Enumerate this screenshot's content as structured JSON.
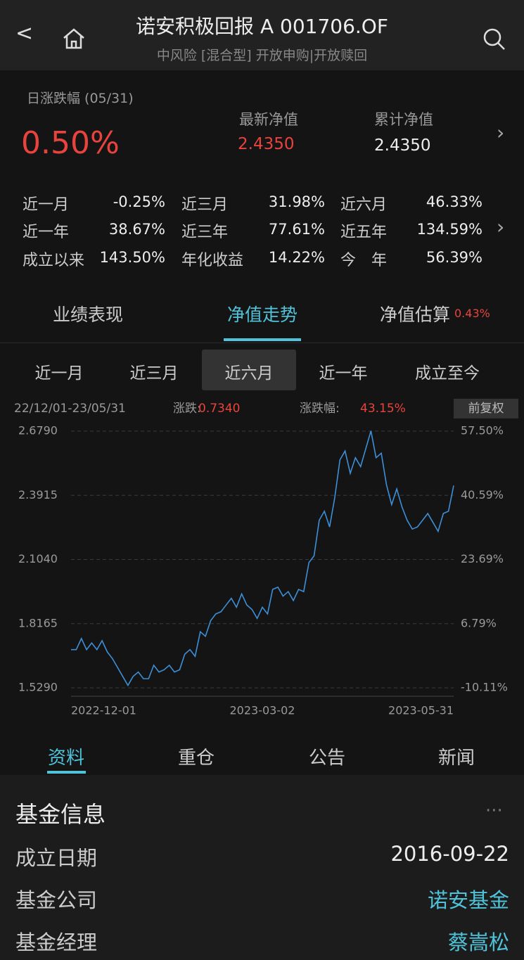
{
  "header": {
    "title": "诺安积极回报 A 001706.OF",
    "subtitle": "中风险 [混合型] 开放申购|开放赎回"
  },
  "summary": {
    "change_label": "日涨跌幅 (05/31)",
    "change": "0.50%",
    "nav_label": "最新净值",
    "nav": "2.4350",
    "acc_label": "累计净值",
    "acc": "2.4350"
  },
  "returns": [
    [
      [
        "近一月",
        "-0.25%"
      ],
      [
        "近三月",
        "31.98%"
      ],
      [
        "近六月",
        "46.33%"
      ]
    ],
    [
      [
        "近一年",
        "38.67%"
      ],
      [
        "近三年",
        "77.61%"
      ],
      [
        "近五年",
        "134.59%"
      ]
    ],
    [
      [
        "成立以来",
        "143.50%"
      ],
      [
        "年化收益",
        "14.22%"
      ],
      [
        "今　年",
        "56.39%"
      ]
    ]
  ],
  "tabs": [
    "业绩表现",
    "净值走势",
    "净值估算"
  ],
  "estimate": "0.43%",
  "ranges": [
    "近一月",
    "近三月",
    "近六月",
    "近一年",
    "成立至今"
  ],
  "chart_data": {
    "type": "line",
    "period": "22/12/01-23/05/31",
    "change_label": "涨跌:",
    "change": "0.7340",
    "change_pct_label": "涨跌幅:",
    "change_pct": "43.15%",
    "adjust": "前复权",
    "color": "#3d8fd6",
    "categories": [
      "2022-12-01",
      null,
      null,
      null,
      null,
      null,
      null,
      null,
      null,
      null,
      null,
      null,
      null,
      null,
      null,
      null,
      null,
      null,
      null,
      null,
      null,
      null,
      null,
      null,
      null,
      null,
      null,
      null,
      null,
      null,
      null,
      null,
      null,
      null,
      null,
      null,
      null,
      "2023-03-02",
      null,
      null,
      null,
      null,
      null,
      null,
      null,
      null,
      null,
      null,
      null,
      null,
      null,
      null,
      null,
      null,
      null,
      null,
      null,
      null,
      null,
      null,
      null,
      null,
      null,
      null,
      null,
      null,
      null,
      null,
      null,
      null,
      null,
      null,
      null,
      null,
      "2023-05-31"
    ],
    "values": [
      1.7,
      1.7,
      1.75,
      1.7,
      1.73,
      1.7,
      1.74,
      1.69,
      1.66,
      1.62,
      1.58,
      1.54,
      1.58,
      1.6,
      1.57,
      1.57,
      1.63,
      1.6,
      1.61,
      1.63,
      1.6,
      1.61,
      1.68,
      1.7,
      1.67,
      1.78,
      1.76,
      1.83,
      1.86,
      1.87,
      1.9,
      1.93,
      1.89,
      1.95,
      1.9,
      1.88,
      1.84,
      1.89,
      1.86,
      1.97,
      1.98,
      1.94,
      1.96,
      1.92,
      1.97,
      1.96,
      2.09,
      2.12,
      2.28,
      2.32,
      2.25,
      2.38,
      2.55,
      2.59,
      2.49,
      2.56,
      2.52,
      2.6,
      2.68,
      2.56,
      2.58,
      2.44,
      2.35,
      2.42,
      2.34,
      2.28,
      2.24,
      2.25,
      2.28,
      2.31,
      2.27,
      2.23,
      2.31,
      2.32,
      2.435
    ],
    "ylim": [
      1.529,
      2.679
    ],
    "yticks": [
      {
        "value": 1.529,
        "label": "1.5290"
      },
      {
        "value": 1.8165,
        "label": "1.8165"
      },
      {
        "value": 2.104,
        "label": "2.1040"
      },
      {
        "value": 2.3915,
        "label": "2.3915"
      },
      {
        "value": 2.679,
        "label": "2.6790"
      }
    ],
    "y2lim": [
      -10.11,
      57.5
    ],
    "y2ticks": [
      {
        "value": -10.11,
        "label": "-10.11%"
      },
      {
        "value": 6.79,
        "label": "6.79%"
      },
      {
        "value": 23.69,
        "label": "23.69%"
      },
      {
        "value": 40.59,
        "label": "40.59%"
      },
      {
        "value": 57.5,
        "label": "57.50%"
      }
    ],
    "grid": true
  },
  "sections": [
    "资料",
    "重仓",
    "公告",
    "新闻"
  ],
  "info": {
    "title": "基金信息",
    "rows": [
      [
        "成立日期",
        "2016-09-22"
      ],
      [
        "基金公司",
        "诺安基金"
      ],
      [
        "基金经理",
        "蔡嵩松"
      ]
    ]
  }
}
